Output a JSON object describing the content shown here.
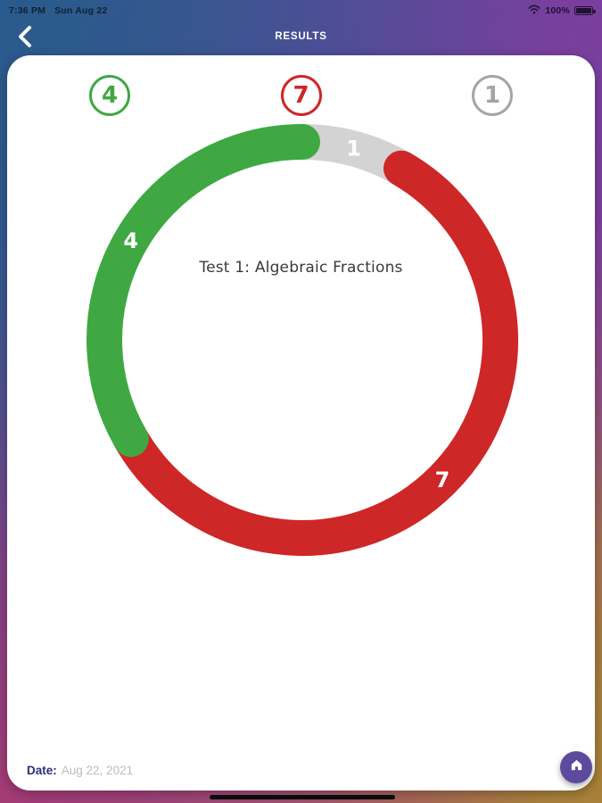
{
  "status_bar": {
    "time": "7:36 PM",
    "date": "Sun Aug 22",
    "battery_percent": "100%"
  },
  "header": {
    "title": "RESULTS"
  },
  "stats": [
    {
      "value": "4",
      "color": "#3fa843"
    },
    {
      "value": "7",
      "color": "#ce2727"
    },
    {
      "value": "1",
      "color": "#a5a5a5"
    }
  ],
  "chart_data": {
    "type": "pie",
    "style": "donut",
    "title": "Test 1: Algebraic Fractions",
    "total": 12,
    "segments": [
      {
        "label": "1",
        "value": 1,
        "color": "#d3d3d3",
        "text_color": "#ffffff",
        "start_angle": 0,
        "end_angle": 30,
        "label_angle": 15
      },
      {
        "label": "7",
        "value": 7,
        "color": "#ce2727",
        "text_color": "#ffffff",
        "start_angle": 30,
        "end_angle": 240,
        "label_angle": 135
      },
      {
        "label": "4",
        "value": 4,
        "color": "#3fa843",
        "text_color": "#ffffff",
        "start_angle": 240,
        "end_angle": 360,
        "label_angle": 300
      }
    ],
    "layout": {
      "center": [
        331,
        319
      ],
      "radius": 222,
      "stroke_width": 40,
      "angles_clockwise_from_top": true,
      "rounded_caps": true,
      "legend": "none"
    }
  },
  "footer": {
    "date_label": "Date:",
    "date_value": "Aug 22, 2021"
  },
  "colors": {
    "card_bg": "#ffffff",
    "home_button_bg": "#5b4a9e",
    "date_label_color": "#2e2e78",
    "header_text": "#ffffff",
    "green": "#3fa843",
    "red": "#ce2727",
    "gray": "#d3d3d3"
  },
  "icons": {
    "back": "chevron-left",
    "wifi": "wifi",
    "battery": "battery-full",
    "home": "home"
  }
}
